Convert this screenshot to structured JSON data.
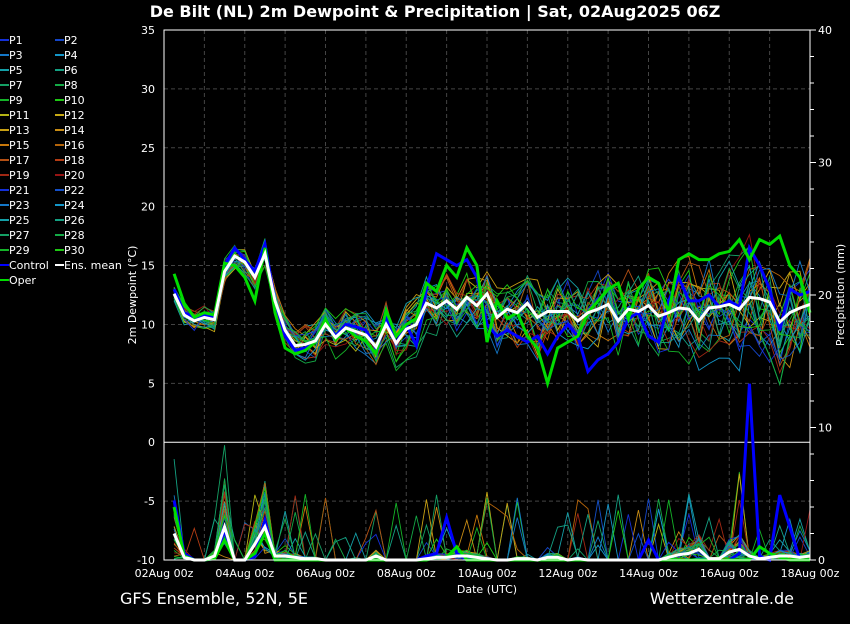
{
  "chart_data": {
    "type": "line",
    "title": "De Bilt  (NL)  2m Dewpoint & Precipitation | Sat, 02Aug2025 06Z",
    "footer_left": "GFS Ensemble, 52N, 5E",
    "footer_right": "Wetterzentrale.de",
    "xlabel": "Date (UTC)",
    "ylabel": "2m Dewpoint (°C)",
    "y2label": "Precipitation (mm)",
    "ylim": [
      -10,
      35
    ],
    "y2lim": [
      0,
      40
    ],
    "yticks": [
      35,
      30,
      25,
      20,
      15,
      10,
      5,
      0,
      -5,
      -10
    ],
    "y2ticks": [
      40,
      30,
      20,
      10,
      0
    ],
    "xticks": [
      "02Aug 00z",
      "04Aug 00z",
      "06Aug 00z",
      "08Aug 00z",
      "10Aug 00z",
      "12Aug 00z",
      "14Aug 00z",
      "16Aug 00z",
      "18Aug 00z"
    ],
    "time_step_hours": 6,
    "first_time": "02Aug 06z",
    "grid": true,
    "legend": {
      "placement": "left",
      "entries": [
        {
          "name": "P1",
          "color": "#1430d8"
        },
        {
          "name": "P2",
          "color": "#1446c8"
        },
        {
          "name": "P3",
          "color": "#1478c8"
        },
        {
          "name": "P4",
          "color": "#1496c8"
        },
        {
          "name": "P5",
          "color": "#14a0a8"
        },
        {
          "name": "P6",
          "color": "#14a082"
        },
        {
          "name": "P7",
          "color": "#14a064"
        },
        {
          "name": "P8",
          "color": "#14aa46"
        },
        {
          "name": "P9",
          "color": "#14b428"
        },
        {
          "name": "P10",
          "color": "#1ec814"
        },
        {
          "name": "P11",
          "color": "#b4b414"
        },
        {
          "name": "P12",
          "color": "#c8aa14"
        },
        {
          "name": "P13",
          "color": "#c8a014"
        },
        {
          "name": "P14",
          "color": "#c88c14"
        },
        {
          "name": "P15",
          "color": "#c8780a"
        },
        {
          "name": "P16",
          "color": "#b4640a"
        },
        {
          "name": "P17",
          "color": "#b45014"
        },
        {
          "name": "P18",
          "color": "#b43c14"
        },
        {
          "name": "P19",
          "color": "#a02814"
        },
        {
          "name": "P20",
          "color": "#961414"
        },
        {
          "name": "P21",
          "color": "#1430d8"
        },
        {
          "name": "P22",
          "color": "#1450c8"
        },
        {
          "name": "P23",
          "color": "#1478c8"
        },
        {
          "name": "P24",
          "color": "#1496c8"
        },
        {
          "name": "P25",
          "color": "#14a0a8"
        },
        {
          "name": "P26",
          "color": "#14a082"
        },
        {
          "name": "P27",
          "color": "#14a064"
        },
        {
          "name": "P28",
          "color": "#14aa46"
        },
        {
          "name": "P29",
          "color": "#14b428"
        },
        {
          "name": "P30",
          "color": "#1ec814"
        },
        {
          "name": "Control",
          "color": "#0000ff"
        },
        {
          "name": "Ens. mean",
          "color": "#ffffff"
        },
        {
          "name": "Oper",
          "color": "#00dd00"
        }
      ]
    },
    "series": [
      {
        "name": "Ens. mean",
        "color": "#ffffff",
        "dewpoint": [
          12.6,
          10.8,
          10.3,
          10.6,
          10.4,
          14.5,
          15.8,
          15.3,
          14.0,
          16.0,
          12.0,
          9.5,
          8.2,
          8.3,
          8.6,
          10.0,
          8.9,
          9.7,
          9.4,
          9.1,
          8.1,
          10.0,
          8.4,
          9.6,
          10.0,
          11.8,
          11.4,
          12.0,
          11.3,
          12.3,
          11.6,
          12.6,
          10.6,
          11.3,
          11.0,
          11.8,
          10.6,
          11.1,
          11.1,
          11.1,
          10.3,
          11.0,
          11.3,
          11.7,
          10.3,
          11.3,
          11.1,
          11.6,
          10.7,
          11.0,
          11.4,
          11.3,
          10.3,
          11.4,
          11.5,
          11.7,
          11.3,
          12.3,
          12.2,
          11.9,
          10.2,
          11.0,
          11.4,
          11.7
        ],
        "precip": [
          2.0,
          0.2,
          0,
          0,
          0.3,
          2.5,
          0,
          0,
          1.2,
          2.5,
          0.3,
          0.3,
          0.2,
          0.1,
          0.1,
          0,
          0,
          0,
          0,
          0,
          0.3,
          0,
          0,
          0,
          0,
          0.1,
          0.2,
          0.2,
          0.3,
          0.3,
          0.2,
          0.1,
          0,
          0,
          0.1,
          0.1,
          0,
          0.2,
          0.2,
          0,
          0.1,
          0,
          0,
          0,
          0,
          0,
          0,
          0,
          0,
          0.2,
          0.4,
          0.5,
          0.8,
          0.1,
          0.1,
          0.6,
          0.8,
          0.3,
          0.1,
          0.2,
          0.3,
          0.3,
          0.2,
          0.3
        ]
      },
      {
        "name": "Control",
        "color": "#0000ff",
        "dewpoint": [
          13.0,
          11.0,
          10.6,
          10.8,
          10.6,
          15.0,
          16.5,
          15.5,
          14.5,
          16.8,
          12.0,
          9.0,
          7.8,
          8.0,
          8.5,
          10.5,
          9.0,
          10.0,
          9.8,
          9.5,
          8.0,
          10.5,
          8.4,
          10.0,
          8.2,
          13.0,
          16.0,
          15.5,
          15.0,
          15.5,
          14.0,
          10.0,
          9.0,
          9.5,
          9.0,
          8.5,
          9.0,
          7.5,
          9.0,
          10.0,
          9.0,
          6.0,
          7.0,
          7.5,
          8.5,
          10.5,
          11.0,
          9.0,
          8.5,
          12.0,
          14.0,
          12.0,
          12.0,
          12.5,
          11.5,
          12.0,
          11.5,
          16.5,
          15.0,
          13.0,
          9.5,
          13.0,
          12.5,
          12.8
        ],
        "precip": [
          4.5,
          0.5,
          0,
          0,
          0.1,
          2.2,
          0,
          0,
          0.3,
          3.0,
          0,
          0,
          0,
          0,
          0,
          0,
          0,
          0,
          0,
          0,
          0,
          0,
          0,
          0,
          0,
          0.3,
          0.5,
          3.2,
          0.5,
          0,
          0,
          0,
          0,
          0,
          0,
          0,
          0,
          0,
          0,
          0,
          0,
          0,
          0,
          0,
          0,
          0,
          0,
          1.5,
          0,
          0,
          0,
          0,
          0,
          0,
          0,
          0,
          0.5,
          13.3,
          0.3,
          0,
          4.9,
          2.5,
          0,
          0
        ]
      },
      {
        "name": "Oper",
        "color": "#00dd00",
        "dewpoint": [
          14.3,
          11.8,
          10.6,
          11.0,
          10.8,
          15.2,
          15.0,
          14.0,
          12.0,
          16.5,
          11.0,
          8.0,
          7.5,
          7.8,
          8.5,
          10.5,
          8.7,
          9.7,
          9.0,
          8.6,
          7.5,
          11.2,
          9.0,
          10.0,
          10.5,
          13.5,
          12.8,
          15.0,
          14.0,
          16.5,
          15.0,
          8.5,
          12.0,
          10.5,
          11.0,
          9.0,
          8.0,
          5.0,
          8.0,
          8.5,
          9.0,
          11.0,
          12.0,
          13.0,
          13.5,
          10.5,
          13.0,
          14.0,
          13.5,
          11.0,
          15.5,
          16.0,
          15.5,
          15.5,
          16.0,
          16.2,
          17.2,
          15.5,
          17.2,
          16.8,
          17.5,
          15.0,
          14.0,
          11.0
        ],
        "precip": [
          4.0,
          0.3,
          0,
          0,
          0.1,
          1.5,
          0,
          0,
          0.5,
          2.0,
          0,
          0,
          0,
          0,
          0,
          0,
          0,
          0,
          0,
          0,
          0,
          0,
          0,
          0,
          0,
          0,
          0.2,
          0.2,
          1.0,
          0,
          0,
          0,
          0,
          0,
          0,
          0,
          0,
          0,
          0,
          0,
          0,
          0,
          0,
          0,
          0,
          0,
          0,
          0,
          0,
          0,
          0,
          0,
          0,
          0,
          0,
          0,
          0,
          0,
          1.0,
          0.5,
          0.2,
          0,
          0,
          0
        ]
      }
    ]
  }
}
